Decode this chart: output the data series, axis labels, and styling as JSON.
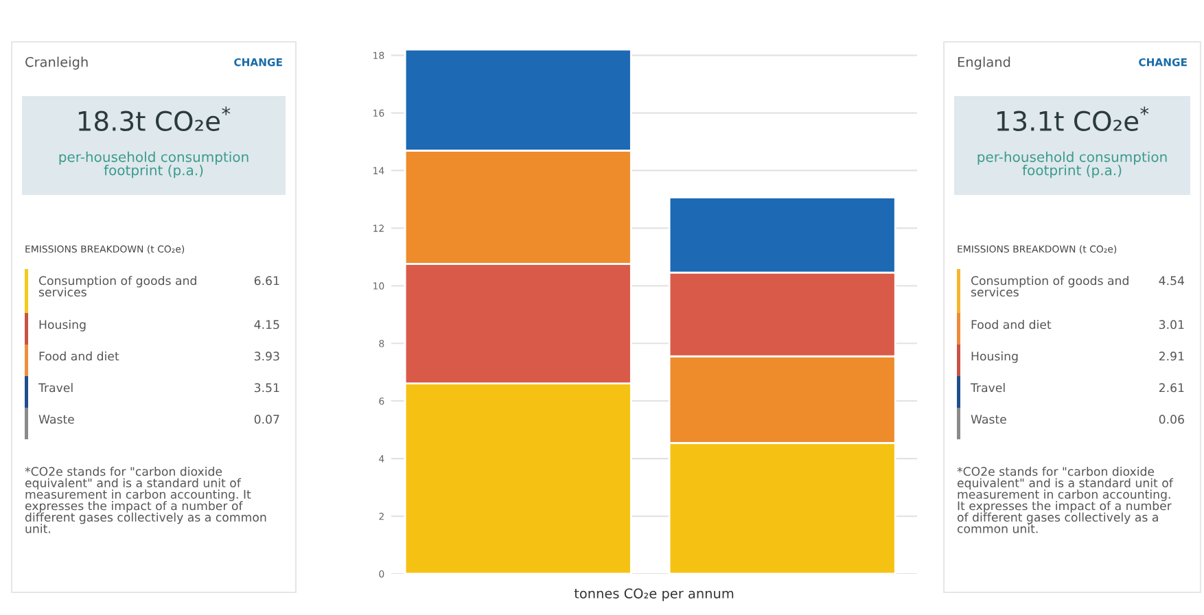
{
  "chart_data": [
    {
      "type": "other",
      "title": "Cranleigh",
      "data_labels": true,
      "categories": [
        "Consumption of goods and services",
        "Housing",
        "Food and diet",
        "Travel",
        "Waste"
      ],
      "values": [
        6.61,
        4.15,
        3.93,
        3.51,
        0.07
      ],
      "colors": [
        "#f2cb1d",
        "#c95246",
        "#ee8f3c",
        "#1f4e8c",
        "#8a8a8a"
      ],
      "annotations": [
        "CHANGE",
        "18.3t CO₂e$^{*}$",
        "per-household consumption footprint (p.a.)",
        "EMISSIONS BREAKDOWN (t CO₂e)",
        "*CO2e stands for \"carbon dioxide equivalent\" and is a standard unit of measurement in carbon accounting. It expresses the impact of a number of different gases collectively as a common unit."
      ]
    },
    {
      "type": "bar",
      "stacked": true,
      "categories": [
        null,
        null
      ],
      "xlabel": "tonnes CO₂e per annum",
      "ylim": [
        0,
        18.3
      ],
      "yticks": [
        0,
        2,
        4,
        6,
        8,
        10,
        12,
        14,
        16,
        18
      ],
      "grid": "y",
      "legend": false,
      "series": [
        {
          "values": [
            6.61,
            4.54
          ],
          "colors": [
            "#f5c213",
            "#f5c213"
          ]
        },
        {
          "values": [
            4.15,
            3.01
          ],
          "colors": [
            "#d95a48",
            "#ee8b2b"
          ]
        },
        {
          "values": [
            3.93,
            2.91
          ],
          "colors": [
            "#ee8b2b",
            "#d95a48"
          ]
        },
        {
          "values": [
            3.51,
            2.61
          ],
          "colors": [
            "#1d69b4",
            "#1d69b4"
          ]
        }
      ]
    },
    {
      "type": "other",
      "title": "England",
      "data_labels": true,
      "categories": [
        "Consumption of goods and services",
        "Food and diet",
        "Housing",
        "Travel",
        "Waste"
      ],
      "values": [
        4.54,
        3.01,
        2.91,
        2.61,
        0.06
      ],
      "colors": [
        "#f5b52e",
        "#ee8a3a",
        "#c95246",
        "#1f4e8c",
        "#8a8a8a"
      ],
      "annotations": [
        "CHANGE",
        "13.1t CO₂e$^{*}$",
        "per-household consumption footprint (p.a.)",
        "EMISSIONS BREAKDOWN (t CO₂e)",
        "*CO2e stands for \"carbon dioxide equivalent\" and is a standard unit of measurement in carbon accounting. It expresses the impact of a number of different gases collectively as a common unit."
      ]
    }
  ]
}
